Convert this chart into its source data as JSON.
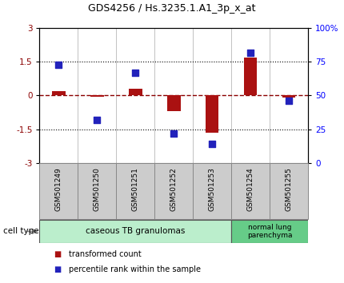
{
  "title": "GDS4256 / Hs.3235.1.A1_3p_x_at",
  "samples": [
    "GSM501249",
    "GSM501250",
    "GSM501251",
    "GSM501252",
    "GSM501253",
    "GSM501254",
    "GSM501255"
  ],
  "transformed_count": [
    0.2,
    -0.05,
    0.3,
    -0.7,
    -1.65,
    1.7,
    -0.1
  ],
  "percentile_rank": [
    73,
    32,
    67,
    22,
    14,
    82,
    46
  ],
  "ylim_left": [
    -3,
    3
  ],
  "ylim_right": [
    0,
    100
  ],
  "yticks_left": [
    -3,
    -1.5,
    0,
    1.5,
    3
  ],
  "yticks_right": [
    0,
    25,
    50,
    75,
    100
  ],
  "ytick_labels_right": [
    "0",
    "25",
    "50",
    "75",
    "100%"
  ],
  "hline_dotted": [
    1.5,
    -1.5
  ],
  "hline_red_dash": 0,
  "bar_color": "#AA1111",
  "dot_color": "#2222BB",
  "bar_width": 0.35,
  "dot_size": 40,
  "group1_label": "caseous TB granulomas",
  "group2_label": "normal lung\nparenchyma",
  "cell_type_label": "cell type",
  "legend_bar_label": "transformed count",
  "legend_dot_label": "percentile rank within the sample",
  "background_color": "#ffffff",
  "plot_bg_color": "#ffffff",
  "xlabel_bg": "#cccccc",
  "group1_color": "#bbeecc",
  "group2_color": "#66cc88"
}
